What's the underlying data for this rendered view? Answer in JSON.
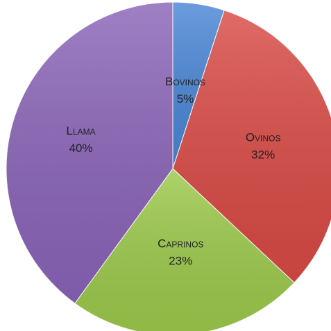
{
  "chart_data": {
    "type": "pie",
    "title": "",
    "categories": [
      "Bovinos",
      "Ovinos",
      "Caprinos",
      "Llama"
    ],
    "values": [
      5,
      32,
      23,
      40
    ],
    "value_labels": [
      "5%",
      "32%",
      "23%",
      "40%"
    ],
    "colors": [
      "#4a86d6",
      "#d94a45",
      "#9cc94b",
      "#8a64b8"
    ],
    "start": "12 o'clock",
    "direction": "clockwise",
    "legend": "none",
    "data_labels": "inside slices"
  }
}
